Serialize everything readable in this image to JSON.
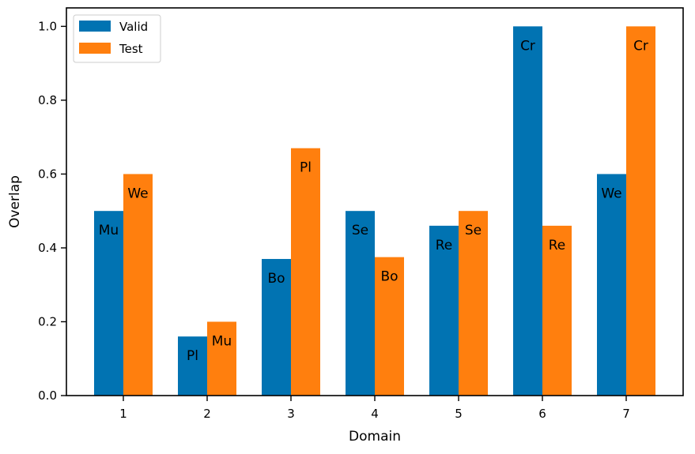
{
  "chart_data": {
    "type": "bar",
    "title": "",
    "xlabel": "Domain",
    "ylabel": "Overlap",
    "categories": [
      "1",
      "2",
      "3",
      "4",
      "5",
      "6",
      "7"
    ],
    "ylim": [
      0,
      1.05
    ],
    "yticks": [
      "0.0",
      "0.2",
      "0.4",
      "0.6",
      "0.8",
      "1.0"
    ],
    "legend_position": "top-left",
    "grid": false,
    "series": [
      {
        "name": "Valid",
        "color": "#0173b2",
        "values": [
          0.5,
          0.16,
          0.37,
          0.5,
          0.46,
          1.0,
          0.6
        ],
        "labels": [
          "Mu",
          "Pl",
          "Bo",
          "Se",
          "Re",
          "Cr",
          "We"
        ]
      },
      {
        "name": "Test",
        "color": "#ff7f0e",
        "values": [
          0.6,
          0.2,
          0.67,
          0.375,
          0.5,
          0.46,
          1.0
        ],
        "labels": [
          "We",
          "Mu",
          "Pl",
          "Bo",
          "Se",
          "Re",
          "Cr"
        ]
      }
    ]
  }
}
